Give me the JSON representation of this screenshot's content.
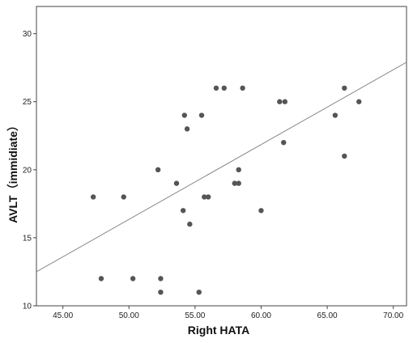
{
  "chart_data": {
    "type": "scatter",
    "xlabel": "Right HATA",
    "ylabel": "AVLT（immidiate）",
    "xlim": [
      43.0,
      71.0
    ],
    "ylim": [
      10,
      32
    ],
    "x_ticks": [
      45,
      50,
      55,
      60,
      65,
      70
    ],
    "x_tick_labels": [
      "45.00",
      "50.00",
      "55.00",
      "60.00",
      "65.00",
      "70.00"
    ],
    "y_ticks": [
      10,
      15,
      20,
      25,
      30
    ],
    "y_tick_labels": [
      "10",
      "15",
      "20",
      "25",
      "30"
    ],
    "grid": false,
    "legend": "none",
    "points": [
      {
        "x": 47.3,
        "y": 18
      },
      {
        "x": 47.9,
        "y": 12
      },
      {
        "x": 49.6,
        "y": 18
      },
      {
        "x": 50.3,
        "y": 12
      },
      {
        "x": 52.2,
        "y": 20
      },
      {
        "x": 52.4,
        "y": 12
      },
      {
        "x": 52.4,
        "y": 11
      },
      {
        "x": 53.6,
        "y": 19
      },
      {
        "x": 54.1,
        "y": 17
      },
      {
        "x": 54.2,
        "y": 24
      },
      {
        "x": 54.4,
        "y": 23
      },
      {
        "x": 54.6,
        "y": 16
      },
      {
        "x": 55.3,
        "y": 11
      },
      {
        "x": 55.5,
        "y": 24
      },
      {
        "x": 55.7,
        "y": 18
      },
      {
        "x": 56.0,
        "y": 18
      },
      {
        "x": 56.6,
        "y": 26
      },
      {
        "x": 57.2,
        "y": 26
      },
      {
        "x": 58.0,
        "y": 19
      },
      {
        "x": 58.3,
        "y": 19
      },
      {
        "x": 58.3,
        "y": 20
      },
      {
        "x": 58.6,
        "y": 26
      },
      {
        "x": 60.0,
        "y": 17
      },
      {
        "x": 61.4,
        "y": 25
      },
      {
        "x": 61.7,
        "y": 22
      },
      {
        "x": 61.8,
        "y": 25
      },
      {
        "x": 65.6,
        "y": 24
      },
      {
        "x": 66.3,
        "y": 26
      },
      {
        "x": 66.3,
        "y": 21
      },
      {
        "x": 67.4,
        "y": 25
      }
    ],
    "fit_line": {
      "x": [
        43.0,
        71.0
      ],
      "y": [
        12.5,
        27.9
      ]
    },
    "marker_color": "#555555",
    "line_color": "#888888",
    "axis_color": "#444444"
  }
}
